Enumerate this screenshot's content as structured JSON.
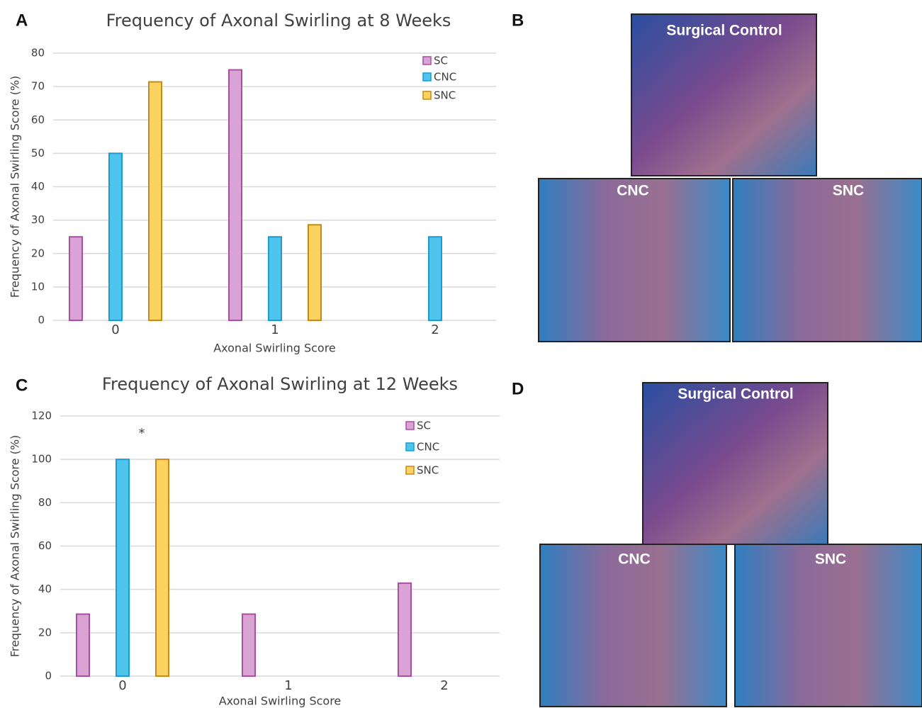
{
  "panel_labels": [
    "A",
    "B",
    "C",
    "D"
  ],
  "micrographs": [
    {
      "labels": [
        "Surgical Control",
        "CNC",
        "SNC"
      ]
    },
    {
      "labels": [
        "Surgical Control",
        "CNC",
        "SNC"
      ]
    }
  ],
  "chart_data": [
    {
      "type": "bar",
      "title": "Frequency of Axonal Swirling at 8 Weeks",
      "x_label": "Axonal Swirling Score",
      "y_label": "Frequency of Axonal Swirling Score (%)",
      "categories": [
        "0",
        "1",
        "2"
      ],
      "series": [
        {
          "name": "SC",
          "color": "#d9a3d4",
          "values": [
            25,
            75,
            0
          ]
        },
        {
          "name": "CNC",
          "color": "#4fc4ec",
          "values": [
            50,
            25,
            25
          ]
        },
        {
          "name": "SNC",
          "color": "#fcd263",
          "values": [
            71.4,
            28.6,
            0
          ]
        }
      ],
      "ylim": [
        0,
        80
      ],
      "yticks": [
        0,
        10,
        20,
        30,
        40,
        50,
        60,
        70,
        80
      ],
      "grid": true,
      "legend": "upper right"
    },
    {
      "type": "bar",
      "title": "Frequency of Axonal Swirling at 12 Weeks",
      "x_label": "Axonal Swirling Score",
      "y_label": "Frequency of Axonal Swirling Score (%)",
      "annotation": "*",
      "categories": [
        "0",
        "1",
        "2"
      ],
      "series": [
        {
          "name": "SC",
          "color": "#d9a3d4",
          "values": [
            28.6,
            28.6,
            42.9
          ]
        },
        {
          "name": "CNC",
          "color": "#4fc4ec",
          "values": [
            100,
            0,
            0
          ]
        },
        {
          "name": "SNC",
          "color": "#fcd263",
          "values": [
            100,
            0,
            0
          ]
        }
      ],
      "ylim": [
        0,
        120
      ],
      "yticks": [
        0,
        20,
        40,
        60,
        80,
        100,
        120
      ],
      "grid": true,
      "legend": "upper right"
    }
  ]
}
